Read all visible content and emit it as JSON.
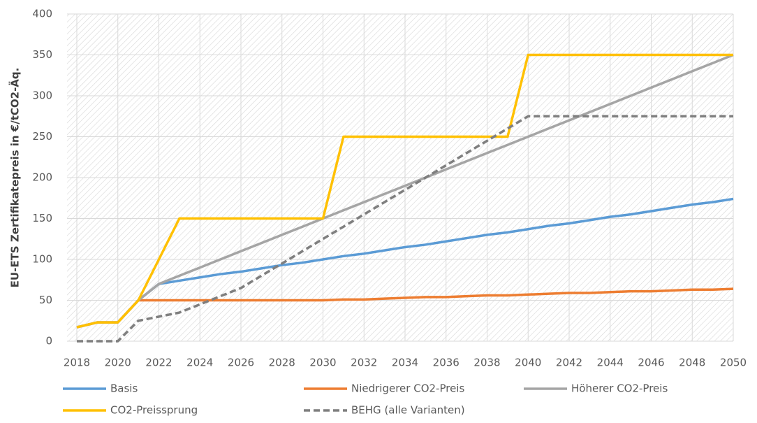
{
  "chart_data": {
    "type": "line",
    "ylabel": "EU-ETS Zertifikatepreis in €/tCO2-Äq.",
    "x": [
      2018,
      2019,
      2020,
      2021,
      2022,
      2023,
      2024,
      2025,
      2026,
      2027,
      2028,
      2029,
      2030,
      2031,
      2032,
      2033,
      2034,
      2035,
      2036,
      2037,
      2038,
      2039,
      2040,
      2041,
      2042,
      2043,
      2044,
      2045,
      2046,
      2047,
      2048,
      2049,
      2050
    ],
    "xlim": [
      2018,
      2050
    ],
    "xticks": [
      2018,
      2020,
      2022,
      2024,
      2026,
      2028,
      2030,
      2032,
      2034,
      2036,
      2038,
      2040,
      2042,
      2044,
      2046,
      2048,
      2050
    ],
    "ylim": [
      0,
      400
    ],
    "yticks": [
      0,
      50,
      100,
      150,
      200,
      250,
      300,
      350,
      400
    ],
    "grid": true,
    "legend": "bottom",
    "series": [
      {
        "name": "Basis",
        "color": "#5b9bd5",
        "values": [
          17,
          23,
          23,
          50,
          70,
          74,
          78,
          82,
          85,
          89,
          93,
          96,
          100,
          104,
          107,
          111,
          115,
          118,
          122,
          126,
          130,
          133,
          137,
          141,
          144,
          148,
          152,
          155,
          159,
          163,
          167,
          170,
          174
        ]
      },
      {
        "name": "Niedrigerer CO2-Preis",
        "color": "#ed7d31",
        "values": [
          17,
          23,
          23,
          50,
          50,
          50,
          50,
          50,
          50,
          50,
          50,
          50,
          50,
          51,
          51,
          52,
          53,
          54,
          54,
          55,
          56,
          56,
          57,
          58,
          59,
          59,
          60,
          61,
          61,
          62,
          63,
          63,
          64
        ]
      },
      {
        "name": "Höherer CO2-Preis",
        "color": "#a5a5a5",
        "values": [
          17,
          23,
          23,
          50,
          70,
          80,
          90,
          100,
          110,
          120,
          130,
          140,
          150,
          160,
          170,
          180,
          190,
          200,
          210,
          220,
          230,
          240,
          250,
          260,
          270,
          280,
          290,
          300,
          310,
          320,
          330,
          340,
          350
        ]
      },
      {
        "name": "CO2-Preissprung",
        "color": "#ffc000",
        "values": [
          17,
          23,
          23,
          50,
          100,
          150,
          150,
          150,
          150,
          150,
          150,
          150,
          150,
          250,
          250,
          250,
          250,
          250,
          250,
          250,
          250,
          250,
          350,
          350,
          350,
          350,
          350,
          350,
          350,
          350,
          350,
          350,
          350
        ]
      },
      {
        "name": "BEHG (alle Varianten)",
        "color": "#7f7f7f",
        "dash": true,
        "values": [
          0,
          0,
          0,
          25,
          30,
          35,
          45,
          55,
          65,
          80,
          95,
          110,
          125,
          140,
          155,
          170,
          185,
          200,
          215,
          230,
          245,
          260,
          275,
          275,
          275,
          275,
          275,
          275,
          275,
          275,
          275,
          275,
          275
        ]
      }
    ]
  }
}
